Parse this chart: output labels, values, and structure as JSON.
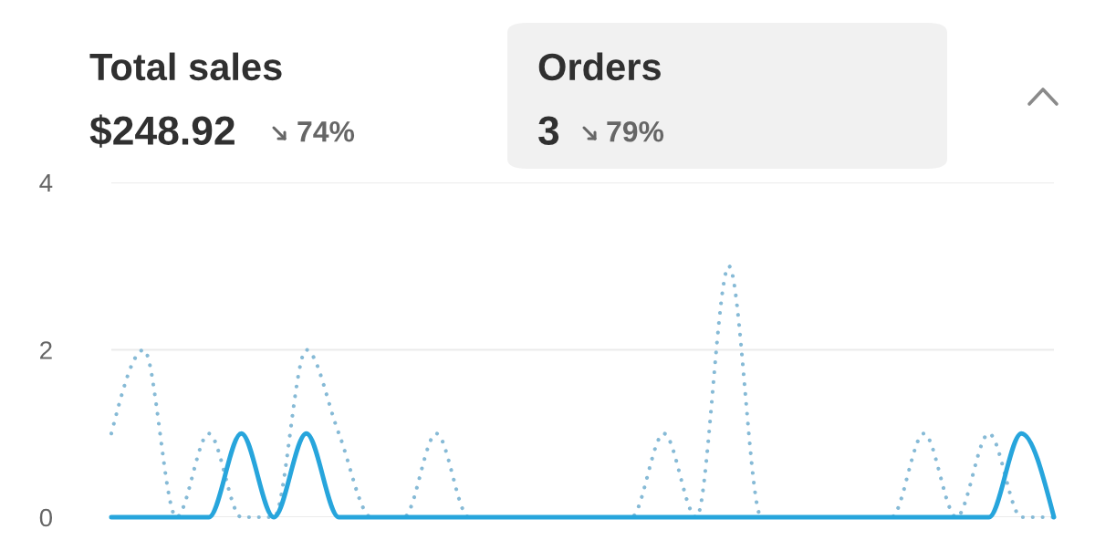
{
  "chart_data": {
    "type": "line",
    "categories": [
      null,
      null,
      null,
      null,
      null,
      null,
      null,
      null,
      null,
      null,
      null,
      null,
      null,
      null,
      null,
      null,
      null,
      null,
      null,
      null,
      null,
      null,
      null,
      null,
      null,
      null,
      null,
      null,
      null,
      null
    ],
    "series": [
      {
        "color": "#86bad6",
        "line_style": "dotted",
        "values": [
          1,
          2,
          0,
          1,
          0,
          0,
          2,
          1,
          0,
          0,
          1,
          0,
          0,
          0,
          0,
          0,
          0,
          1,
          0,
          3,
          0,
          0,
          0,
          0,
          0,
          1,
          0,
          1,
          0,
          0
        ]
      },
      {
        "color": "#27a5dc",
        "line_style": "solid",
        "values": [
          0,
          0,
          0,
          0,
          1,
          0,
          1,
          0,
          0,
          0,
          0,
          0,
          0,
          0,
          0,
          0,
          0,
          0,
          0,
          0,
          0,
          0,
          0,
          0,
          0,
          0,
          0,
          0,
          1,
          0
        ]
      }
    ],
    "ylim": [
      0,
      4
    ],
    "yticks": [
      0,
      2,
      4
    ],
    "grid": "y",
    "tick_labels": "y",
    "annotations": [
      "Total sales",
      "$248.92",
      "74%",
      "Orders",
      "3",
      "79%"
    ]
  }
}
